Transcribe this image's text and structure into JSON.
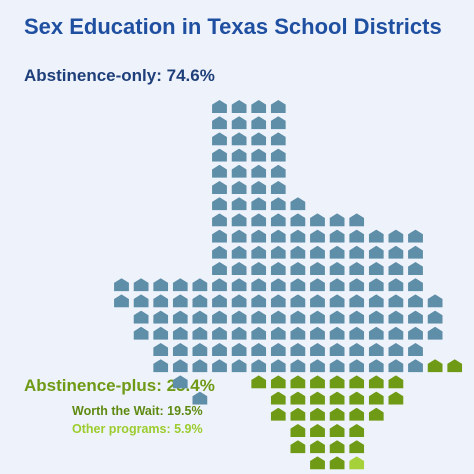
{
  "chart_data": {
    "type": "pictogram",
    "title": "Sex Education in Texas School Districts",
    "categories": [
      {
        "name": "Abstinence-only",
        "value_label": "Abstinence-only: 74.6%",
        "value": 74.6,
        "color": "#5f8ea8"
      },
      {
        "name": "Abstinence-plus",
        "value_label": "Abstinence-plus: 25.4%",
        "value": 25.4,
        "color": "#6f9a16",
        "subcategories": [
          {
            "name": "Worth the Wait",
            "value_label": "Worth the Wait: 19.5%",
            "value": 19.5,
            "color": "#6f9a16"
          },
          {
            "name": "Other programs",
            "value_label": "Other programs: 5.9%",
            "value": 5.9,
            "color": "#a6d13a"
          }
        ]
      }
    ],
    "icon": "schoolhouse-icon"
  }
}
